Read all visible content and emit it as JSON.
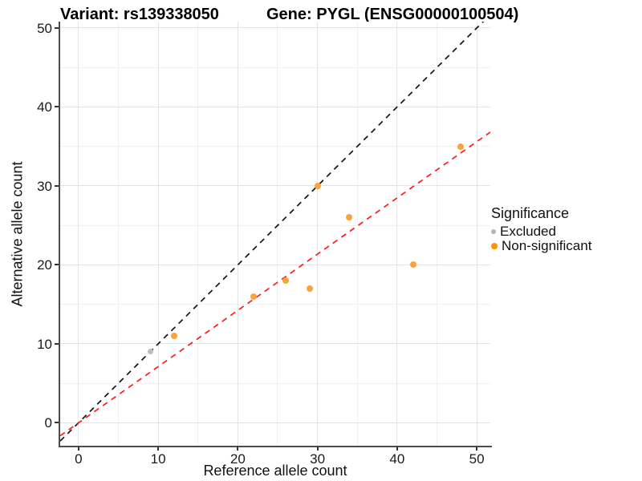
{
  "page": {
    "background": "#ffffff"
  },
  "chart_data": {
    "type": "scatter",
    "title_left": "Variant: rs139338050",
    "title_right": "Gene: PYGL (ENSG00000100504)",
    "xlabel": "Reference allele count",
    "ylabel": "Alternative allele count",
    "xlim": [
      -2.3,
      51.7
    ],
    "ylim": [
      -3.0,
      50.8
    ],
    "x_ticks": [
      0,
      10,
      20,
      30,
      40,
      50
    ],
    "y_ticks": [
      0,
      10,
      20,
      30,
      40,
      50
    ],
    "x_minor_ticks": [
      5,
      15,
      25,
      35,
      45
    ],
    "y_minor_ticks": [
      5,
      15,
      25,
      35,
      45
    ],
    "grid": {
      "major_color": "#e4e4e4",
      "minor_color": "#f1f1f1",
      "gridlines_on": true
    },
    "axis_color": "#4d4d4d",
    "legend_position": "right",
    "series": [
      {
        "name": "Excluded",
        "color": "#bdbdbd",
        "dot_size": 7,
        "points": [
          [
            9,
            9
          ]
        ]
      },
      {
        "name": "Non-significant",
        "color": "#f9a33c",
        "dot_size": 8,
        "points": [
          [
            12,
            11
          ],
          [
            22,
            16
          ],
          [
            26,
            18
          ],
          [
            29,
            17
          ],
          [
            30,
            30
          ],
          [
            34,
            26
          ],
          [
            42,
            20
          ],
          [
            48,
            35
          ]
        ]
      }
    ],
    "lines": [
      {
        "name": "identity-line",
        "slope": 1.0,
        "intercept": 0,
        "color": "#141414",
        "style": "dashed"
      },
      {
        "name": "allelic-ratio-line",
        "slope": 0.712,
        "intercept": 0,
        "color": "#ff1a1a",
        "style": "dashed"
      }
    ],
    "legend": {
      "title": "Significance",
      "items": [
        {
          "label": "Excluded",
          "color": "#b5b5b5",
          "dot_size": 6
        },
        {
          "label": "Non-significant",
          "color": "#ff9300",
          "dot_size": 8
        }
      ]
    }
  }
}
